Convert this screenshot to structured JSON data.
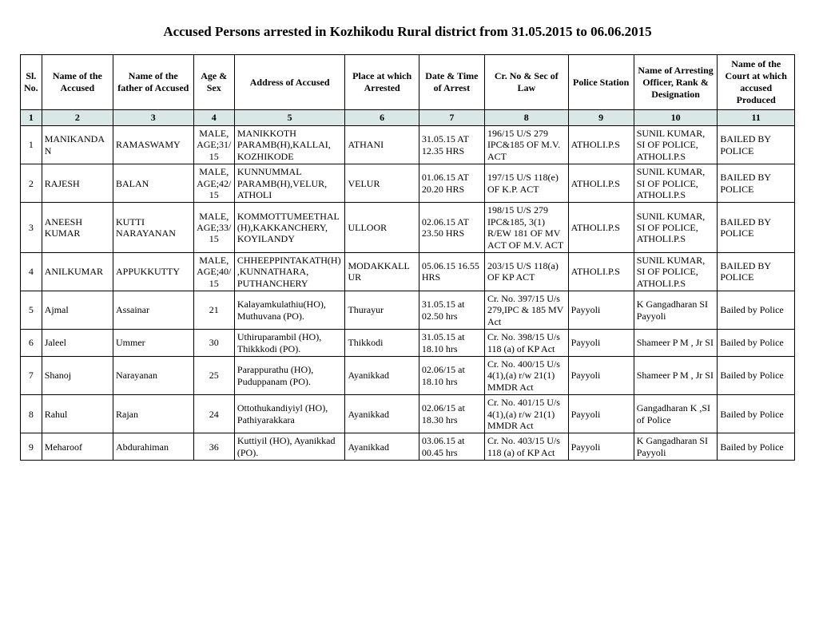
{
  "title": "Accused Persons arrested in  Kozhikodu Rural  district from  31.05.2015 to 06.06.2015",
  "columns": [
    "Sl. No.",
    "Name of the Accused",
    "Name of the father of Accused",
    "Age & Sex",
    "Address of Accused",
    "Place at which Arrested",
    "Date & Time of Arrest",
    "Cr. No & Sec of Law",
    "Police Station",
    "Name of Arresting Officer, Rank & Designation",
    "Name of the Court at which accused Produced"
  ],
  "col_numbers": [
    "1",
    "2",
    "3",
    "4",
    "5",
    "6",
    "7",
    "8",
    "9",
    "10",
    "11"
  ],
  "rows": [
    {
      "sl": "1",
      "name": "MANIKANDAN",
      "father": "RAMASWAMY",
      "age": "MALE, AGE;31/15",
      "addr": "MANIKKOTH PARAMB(H),KALLAI, KOZHIKODE",
      "place": "ATHANI",
      "date": "31.05.15 AT 12.35  HRS",
      "law": "196/15  U/S  279 IPC&185   OF M.V. ACT",
      "ps": "ATHOLI.P.S",
      "officer": "SUNIL KUMAR, SI  OF  POLICE, ATHOLI.P.S",
      "court": "BAILED   BY POLICE"
    },
    {
      "sl": "2",
      "name": "RAJESH",
      "father": "BALAN",
      "age": "MALE, AGE;42/15",
      "addr": "KUNNUMMAL PARAMB(H),VELUR, ATHOLI",
      "place": "VELUR",
      "date": "01.06.15 AT 20.20  HRS",
      "law": "197/15 U/S 118(e)  OF   K.P. ACT",
      "ps": "ATHOLI.P.S",
      "officer": "SUNIL KUMAR, SI  OF  POLICE, ATHOLI.P.S",
      "court": "BAILED   BY POLICE"
    },
    {
      "sl": "3",
      "name": "ANEESH KUMAR",
      "father": "KUTTI NARAYANAN",
      "age": "MALE, AGE;33/15",
      "addr": "KOMMOTTUMEETHAL(H),KAKKANCHERY, KOYILANDY",
      "place": "ULLOOR",
      "date": "02.06.15  AT 23.50  HRS",
      "law": "198/15  U/S  279 IPC&185,  3(1) R/EW  181  OF MV  ACT   OF M.V. ACT",
      "ps": "ATHOLI.P.S",
      "officer": "SUNIL KUMAR, SI  OF  POLICE, ATHOLI.P.S",
      "court": "BAILED   BY POLICE"
    },
    {
      "sl": "4",
      "name": "ANILKUMAR",
      "father": "APPUKKUTTY",
      "age": "MALE, AGE;40/15",
      "addr": "CHHEEPPINTAKATH(H),KUNNATHARA, PUTHANCHERY",
      "place": "MODAKKALLUR",
      "date": "05.06.15 16.55 HRS",
      "law": "203/15 U/S 118(a)  OF  KP ACT",
      "ps": "ATHOLI.P.S",
      "officer": "SUNIL KUMAR, SI  OF  POLICE, ATHOLI.P.S",
      "court": "BAILED   BY POLICE"
    },
    {
      "sl": "5",
      "name": "Ajmal",
      "father": "Assainar",
      "age": "21",
      "addr": "Kalayamkulathiu(HO), Muthuvana (PO).",
      "place": "Thurayur",
      "date": "31.05.15 at 02.50 hrs",
      "law": "Cr. No. 397/15 U/s 279,IPC & 185 MV Act",
      "ps": "Payyoli",
      "officer": "K Gangadharan SI Payyoli",
      "court": "Bailed by Police"
    },
    {
      "sl": "6",
      "name": "Jaleel",
      "father": "Ummer",
      "age": "30",
      "addr": "Uthiruparambil (HO), Thikkkodi (PO).",
      "place": "Thikkodi",
      "date": "31.05.15 at 18.10 hrs",
      "law": "Cr. No. 398/15 U/s 118 (a) of KP Act",
      "ps": "Payyoli",
      "officer": "Shameer P M , Jr SI",
      "court": "Bailed by Police"
    },
    {
      "sl": "7",
      "name": "Shanoj",
      "father": "Narayanan",
      "age": "25",
      "addr": "Parappurathu (HO), Puduppanam (PO).",
      "place": "Ayanikkad",
      "date": "02.06/15 at 18.10 hrs",
      "law": "Cr. No. 400/15 U/s 4(1),(a) r/w 21(1) MMDR Act",
      "ps": "Payyoli",
      "officer": "Shameer P M , Jr SI",
      "court": "Bailed by Police"
    },
    {
      "sl": "8",
      "name": "Rahul",
      "father": "Rajan",
      "age": "24",
      "addr": "Ottothukandiyiyl (HO), Pathiyarakkara",
      "place": "Ayanikkad",
      "date": "02.06/15 at 18.30 hrs",
      "law": "Cr. No. 401/15 U/s 4(1),(a) r/w 21(1) MMDR Act",
      "ps": "Payyoli",
      "officer": "Gangadharan K ,SI of Police",
      "court": "Bailed by Police"
    },
    {
      "sl": "9",
      "name": "Meharoof",
      "father": "Abdurahiman",
      "age": "36",
      "addr": "Kuttiyil (HO), Ayanikkad (PO).",
      "place": "Ayanikkad",
      "date": "03.06.15 at 00.45 hrs",
      "law": "Cr. No. 403/15 U/s 118 (a) of KP Act",
      "ps": "Payyoli",
      "officer": "K Gangadharan SI Payyoli",
      "court": "Bailed by Police"
    }
  ]
}
